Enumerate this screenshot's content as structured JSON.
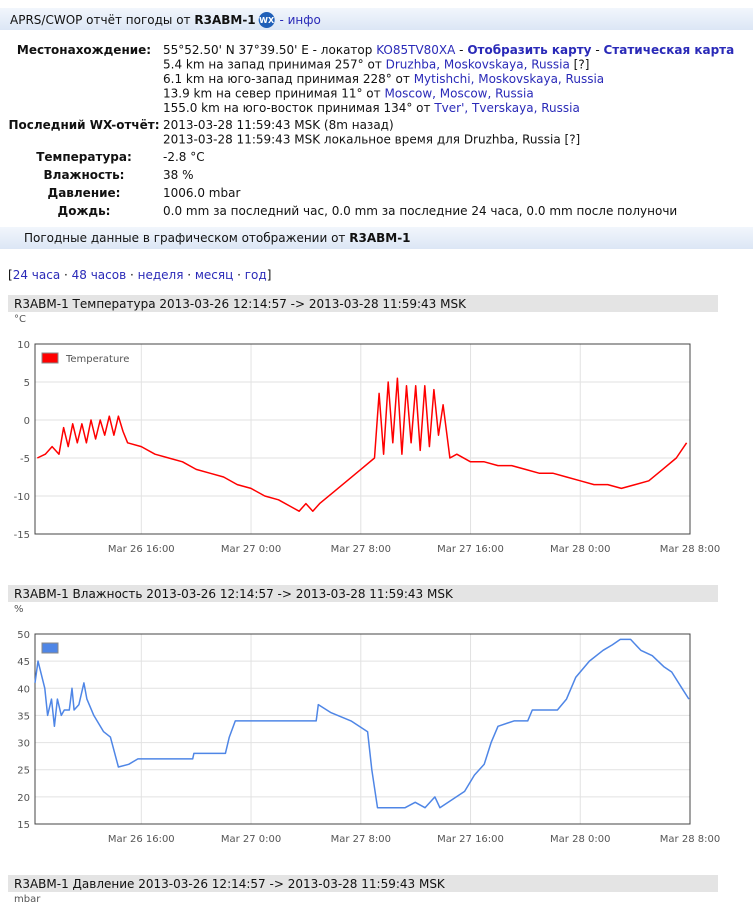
{
  "header": {
    "title": "APRS/CWOP отчёт погоды от ",
    "callsign": "R3ABM-1",
    "badge": "WX",
    "link": " - инфо"
  },
  "info": {
    "rows": [
      {
        "label": "Местонахождение:",
        "lines": [
          [
            "55°52.50' N 37°39.50' E - локатор ",
            {
              "text": "KO85TV80XA",
              "style": "link"
            },
            " - ",
            {
              "text": "Отобразить карту",
              "style": "bold-link"
            },
            " - ",
            {
              "text": "Статическая карта",
              "style": "bold-link"
            }
          ],
          [
            "5.4 km на запад принимая 257° от ",
            {
              "text": "Druzhba, Moskovskaya, Russia",
              "style": "link"
            },
            " [?]"
          ],
          [
            "6.1 km на юго-запад принимая 228° от ",
            {
              "text": "Mytishchi, Moskovskaya, Russia",
              "style": "link"
            }
          ],
          [
            "13.9 km на север принимая 11° от ",
            {
              "text": "Moscow, Moscow, Russia",
              "style": "link"
            }
          ],
          [
            "155.0 km на юго-восток принимая 134° от ",
            {
              "text": "Tver', Tverskaya, Russia",
              "style": "link"
            }
          ]
        ]
      },
      {
        "label": "Последний WX-отчёт:",
        "lines": [
          [
            "2013-03-28 11:59:43 MSK (8m назад)"
          ],
          [
            "2013-03-28 11:59:43 MSK локальное время для Druzhba, Russia [?]"
          ]
        ]
      },
      {
        "label": "Температура:",
        "lines": [
          [
            "-2.8 °C"
          ]
        ]
      },
      {
        "label": "Влажность:",
        "lines": [
          [
            "38 %"
          ]
        ]
      },
      {
        "label": "Давление:",
        "lines": [
          [
            "1006.0 mbar"
          ]
        ]
      },
      {
        "label": "Дождь:",
        "lines": [
          [
            "0.0 mm за последний час, 0.0 mm за последние 24 часа, 0.0 mm после полуночи"
          ]
        ]
      }
    ]
  },
  "section_title": [
    "Погодные данные в графическом отображении от ",
    {
      "text": "R3ABM-1",
      "style": "bold"
    }
  ],
  "period_links": {
    "open": "[",
    "items": [
      "24 часа",
      "48 часов",
      "неделя",
      "месяц",
      "год"
    ],
    "separator": " · ",
    "close": "]"
  },
  "chart_data": [
    {
      "type": "line",
      "title": "R3ABM-1 Температура 2013-03-26 12:14:57 -> 2013-03-28 11:59:43 MSK",
      "y_unit": "°C",
      "xlim": [
        "2013-03-26 08:15",
        "2013-03-28 08:00"
      ],
      "xticks": [
        {
          "value": "2013-03-26 16:00",
          "label": "Mar 26 16:00"
        },
        {
          "value": "2013-03-27 00:00",
          "label": "Mar 27 0:00"
        },
        {
          "value": "2013-03-27 08:00",
          "label": "Mar 27 8:00"
        },
        {
          "value": "2013-03-27 16:00",
          "label": "Mar 27 16:00"
        },
        {
          "value": "2013-03-28 00:00",
          "label": "Mar 28 0:00"
        },
        {
          "value": "2013-03-28 08:00",
          "label": "Mar 28 8:00"
        }
      ],
      "ylim": [
        -15,
        10
      ],
      "yticks": [
        -15,
        -10,
        -5,
        0,
        5,
        10
      ],
      "grid": true,
      "legend": "top-left",
      "x": [
        "2013-03-26 08:25",
        "2013-03-26 09:00",
        "2013-03-26 09:30",
        "2013-03-26 10:00",
        "2013-03-26 10:20",
        "2013-03-26 10:40",
        "2013-03-26 11:00",
        "2013-03-26 11:20",
        "2013-03-26 11:40",
        "2013-03-26 12:00",
        "2013-03-26 12:20",
        "2013-03-26 12:40",
        "2013-03-26 13:00",
        "2013-03-26 13:20",
        "2013-03-26 13:40",
        "2013-03-26 14:00",
        "2013-03-26 14:20",
        "2013-03-26 14:40",
        "2013-03-26 15:00",
        "2013-03-26 16:00",
        "2013-03-26 17:00",
        "2013-03-26 18:00",
        "2013-03-26 19:00",
        "2013-03-26 20:00",
        "2013-03-26 21:00",
        "2013-03-26 22:00",
        "2013-03-26 23:00",
        "2013-03-27 00:00",
        "2013-03-27 01:00",
        "2013-03-27 02:00",
        "2013-03-27 03:00",
        "2013-03-27 03:30",
        "2013-03-27 04:00",
        "2013-03-27 04:30",
        "2013-03-27 05:00",
        "2013-03-27 06:00",
        "2013-03-27 07:00",
        "2013-03-27 08:00",
        "2013-03-27 09:00",
        "2013-03-27 09:20",
        "2013-03-27 09:40",
        "2013-03-27 10:00",
        "2013-03-27 10:20",
        "2013-03-27 10:40",
        "2013-03-27 11:00",
        "2013-03-27 11:20",
        "2013-03-27 11:40",
        "2013-03-27 12:00",
        "2013-03-27 12:20",
        "2013-03-27 12:40",
        "2013-03-27 13:00",
        "2013-03-27 13:20",
        "2013-03-27 13:40",
        "2013-03-27 14:00",
        "2013-03-27 14:30",
        "2013-03-27 15:00",
        "2013-03-27 16:00",
        "2013-03-27 17:00",
        "2013-03-27 18:00",
        "2013-03-27 19:00",
        "2013-03-27 20:00",
        "2013-03-27 21:00",
        "2013-03-27 22:00",
        "2013-03-27 23:00",
        "2013-03-28 00:00",
        "2013-03-28 01:00",
        "2013-03-28 02:00",
        "2013-03-28 03:00",
        "2013-03-28 04:00",
        "2013-03-28 05:00",
        "2013-03-28 06:00",
        "2013-03-28 07:00",
        "2013-03-28 07:45"
      ],
      "series": [
        {
          "name": "Temperature",
          "color": "#ff0000",
          "values": [
            -5,
            -4.5,
            -3.5,
            -4.5,
            -1,
            -3.5,
            -0.5,
            -3,
            -0.5,
            -3,
            0,
            -2.5,
            0,
            -2,
            0.5,
            -2,
            0.5,
            -1.5,
            -3,
            -3.5,
            -4.5,
            -5,
            -5.5,
            -6.5,
            -7,
            -7.5,
            -8.5,
            -9,
            -10,
            -10.5,
            -11.5,
            -12,
            -11,
            -12,
            -11,
            -9.5,
            -8,
            -6.5,
            -5,
            3.5,
            -4.5,
            5,
            -3,
            5.5,
            -4.5,
            4.5,
            -3,
            4.5,
            -4,
            4.5,
            -3.5,
            4,
            -2,
            2,
            -5,
            -4.5,
            -5.5,
            -5.5,
            -6,
            -6,
            -6.5,
            -7,
            -7,
            -7.5,
            -8,
            -8.5,
            -8.5,
            -9,
            -8.5,
            -8,
            -6.5,
            -5,
            -3
          ]
        }
      ]
    },
    {
      "type": "line",
      "title": "R3ABM-1 Влажность 2013-03-26 12:14:57 -> 2013-03-28 11:59:43 MSK",
      "y_unit": "%",
      "xlim": [
        "2013-03-26 08:15",
        "2013-03-28 08:00"
      ],
      "xticks": [
        {
          "value": "2013-03-26 16:00",
          "label": "Mar 26 16:00"
        },
        {
          "value": "2013-03-27 00:00",
          "label": "Mar 27 0:00"
        },
        {
          "value": "2013-03-27 08:00",
          "label": "Mar 27 8:00"
        },
        {
          "value": "2013-03-27 16:00",
          "label": "Mar 27 16:00"
        },
        {
          "value": "2013-03-28 00:00",
          "label": "Mar 28 0:00"
        },
        {
          "value": "2013-03-28 08:00",
          "label": "Mar 28 8:00"
        }
      ],
      "ylim": [
        15,
        50
      ],
      "yticks": [
        15,
        20,
        25,
        30,
        35,
        40,
        45,
        50
      ],
      "grid": true,
      "legend": "top-left",
      "x": [
        "2013-03-26 08:15",
        "2013-03-26 08:28",
        "2013-03-26 08:58",
        "2013-03-26 09:10",
        "2013-03-26 09:27",
        "2013-03-26 09:40",
        "2013-03-26 09:53",
        "2013-03-26 10:10",
        "2013-03-26 10:23",
        "2013-03-26 10:45",
        "2013-03-26 10:57",
        "2013-03-26 11:06",
        "2013-03-26 11:27",
        "2013-03-26 11:49",
        "2013-03-26 12:02",
        "2013-03-26 12:32",
        "2013-03-26 13:15",
        "2013-03-26 13:45",
        "2013-03-26 14:20",
        "2013-03-26 15:05",
        "2013-03-26 15:45",
        "2013-03-26 19:45",
        "2013-03-26 19:50",
        "2013-03-26 22:08",
        "2013-03-26 22:25",
        "2013-03-26 22:51",
        "2013-03-27 04:45",
        "2013-03-27 04:54",
        "2013-03-27 05:50",
        "2013-03-27 07:17",
        "2013-03-27 08:30",
        "2013-03-27 08:48",
        "2013-03-27 09:13",
        "2013-03-27 11:14",
        "2013-03-27 11:58",
        "2013-03-27 12:41",
        "2013-03-27 13:24",
        "2013-03-27 13:46",
        "2013-03-27 15:34",
        "2013-03-27 16:17",
        "2013-03-27 17:00",
        "2013-03-27 17:30",
        "2013-03-27 18:00",
        "2013-03-27 19:10",
        "2013-03-27 20:10",
        "2013-03-27 20:30",
        "2013-03-27 22:20",
        "2013-03-27 23:00",
        "2013-03-27 23:40",
        "2013-03-28 00:40",
        "2013-03-28 01:40",
        "2013-03-28 02:20",
        "2013-03-28 02:55",
        "2013-03-28 03:40",
        "2013-03-28 04:25",
        "2013-03-28 05:15",
        "2013-03-28 06:05",
        "2013-03-28 06:40",
        "2013-03-28 07:25",
        "2013-03-28 07:55"
      ],
      "series": [
        {
          "color": "#4f86e6",
          "values": [
            41,
            45,
            40,
            35,
            38,
            33,
            38,
            35,
            36,
            36,
            40,
            36,
            37,
            41,
            38,
            35,
            32,
            31,
            25.5,
            26,
            27,
            27,
            28,
            28,
            31,
            34,
            34,
            37,
            35.5,
            34,
            32,
            25,
            18,
            18,
            19,
            18,
            20,
            18,
            21,
            24,
            26,
            30,
            33,
            34,
            34,
            36,
            36,
            38,
            42,
            45,
            47,
            48,
            49,
            49,
            47,
            46,
            44,
            43,
            40,
            38
          ]
        }
      ]
    }
  ],
  "pressure_chart": {
    "title": "R3ABM-1 Давление 2013-03-26 12:14:57 -> 2013-03-28 11:59:43 MSK",
    "y_unit": "mbar"
  }
}
